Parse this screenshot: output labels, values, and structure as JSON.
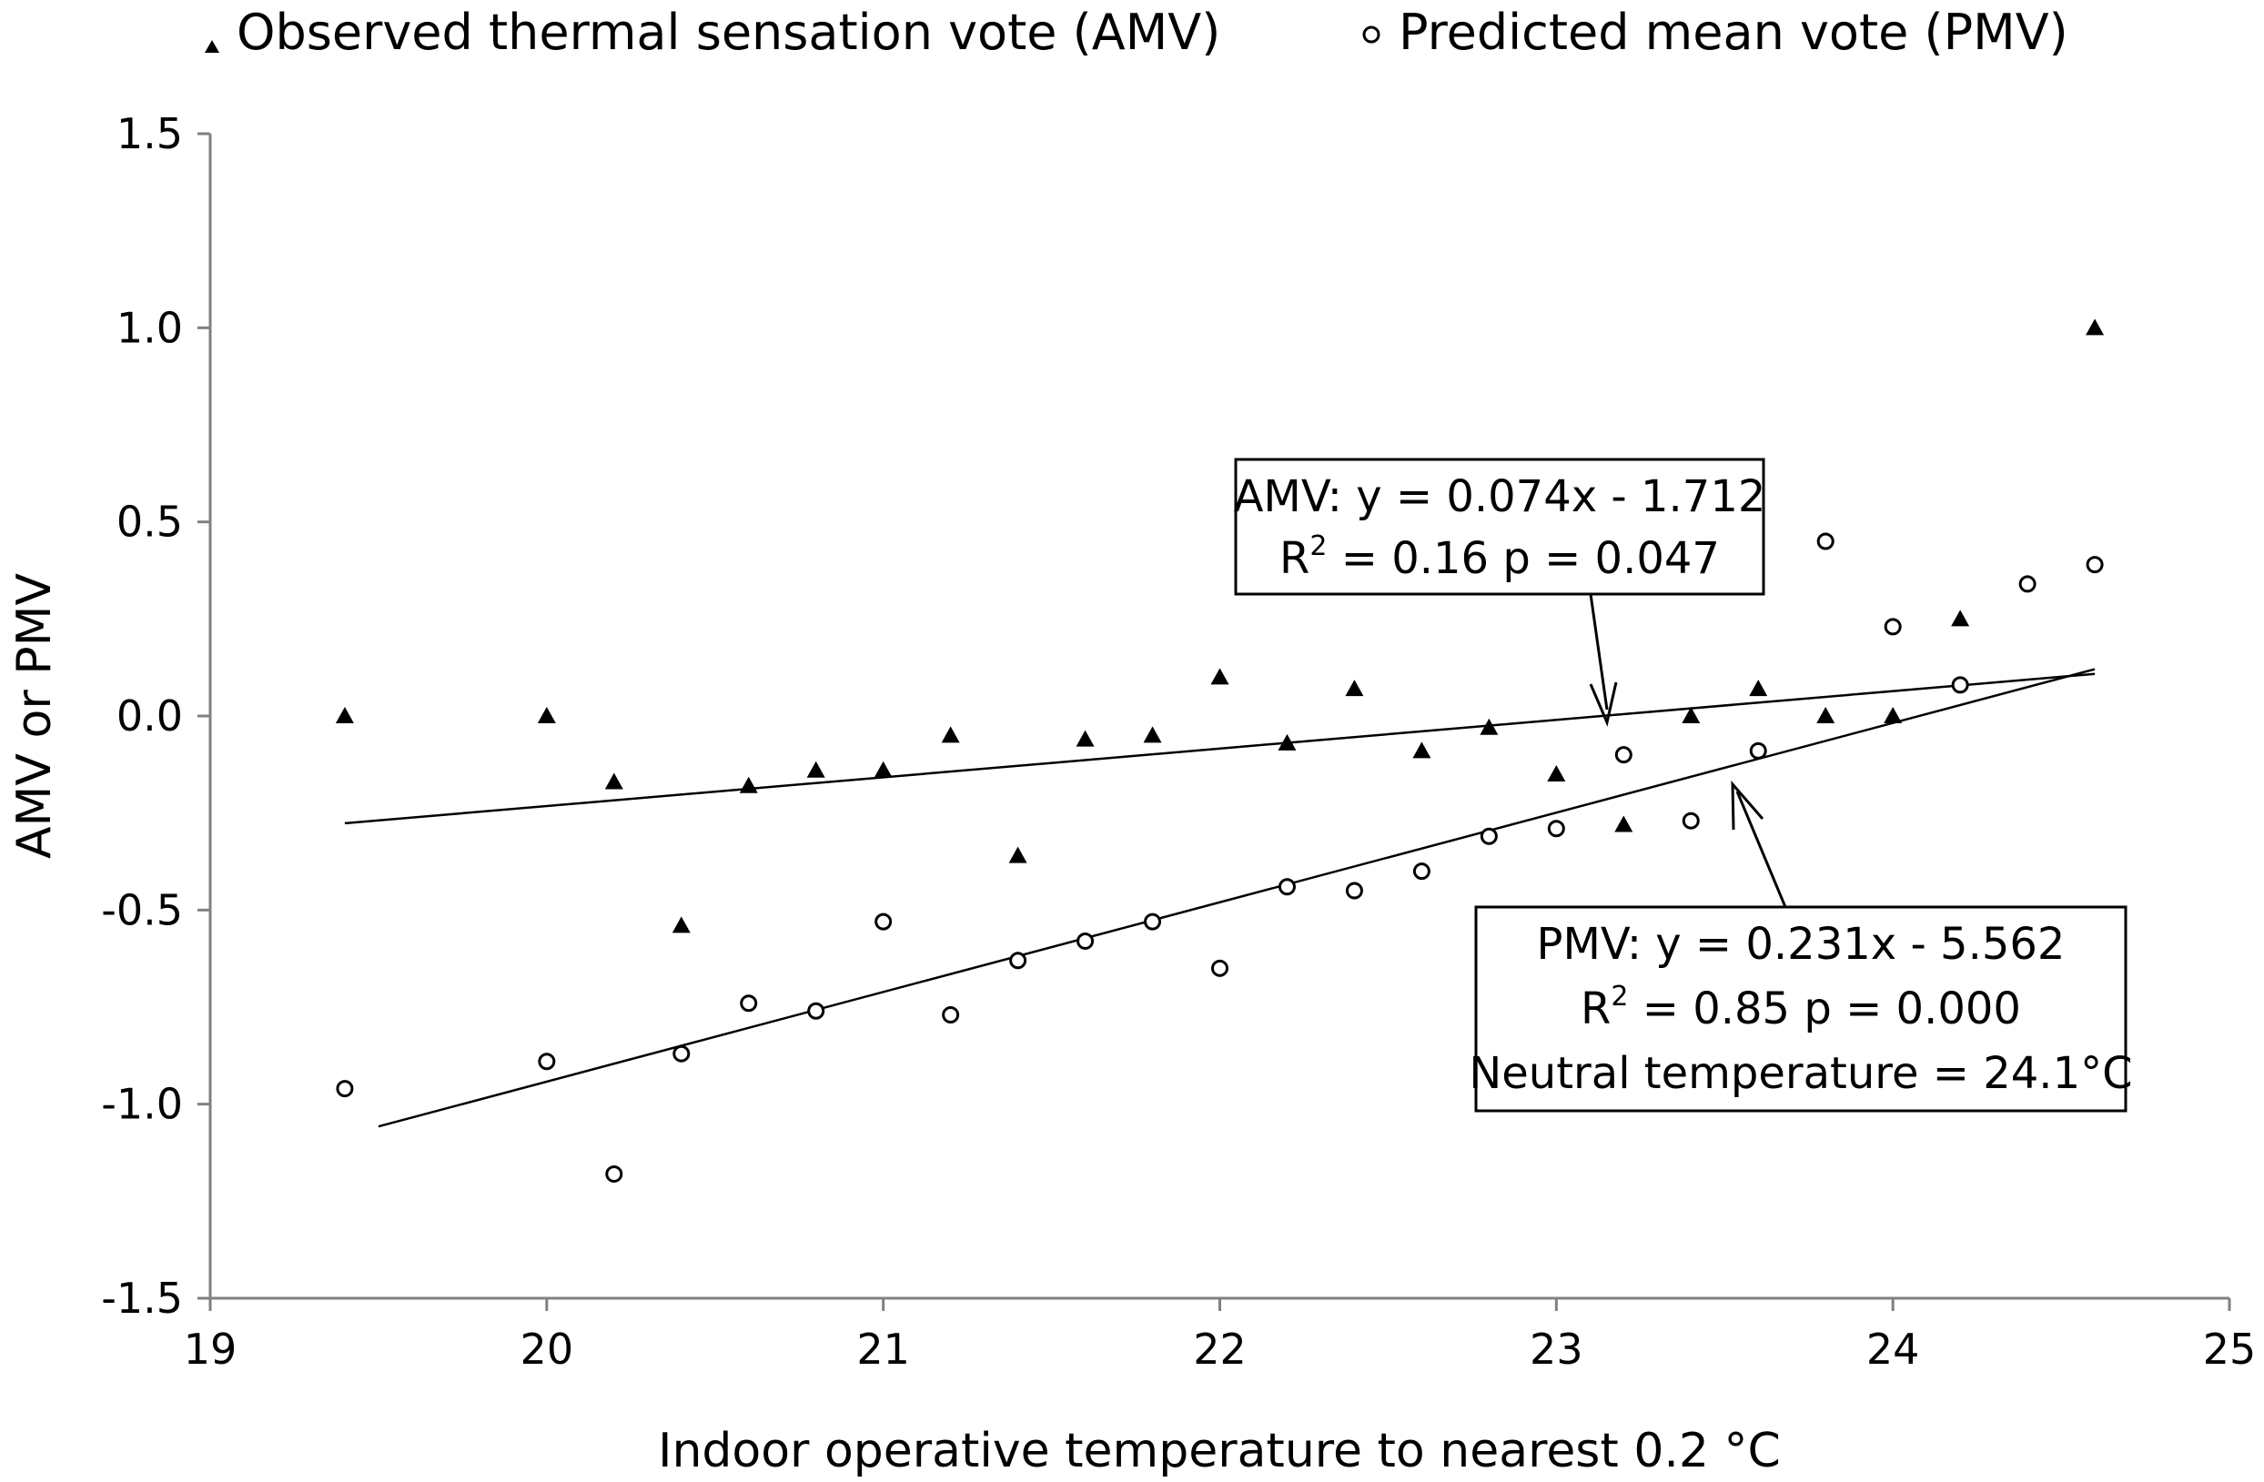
{
  "chart_data": {
    "type": "scatter",
    "title": "",
    "xlabel": "Indoor operative temperature to nearest 0.2 °C",
    "ylabel": "AMV or PMV",
    "xlim": [
      19,
      25
    ],
    "ylim": [
      -1.5,
      1.5
    ],
    "x_ticks": [
      19,
      20,
      21,
      22,
      23,
      24,
      25
    ],
    "y_ticks": [
      1.5,
      1.0,
      0.5,
      0.0,
      -0.5,
      -1.0,
      -1.5
    ],
    "x_tick_labels": [
      "19",
      "20",
      "21",
      "22",
      "23",
      "24",
      "25"
    ],
    "y_tick_labels": [
      "1.5",
      "1.0",
      "0.5",
      "0.0",
      "-0.5",
      "-1.0",
      "-1.5"
    ],
    "grid": false,
    "legend_position": "top",
    "series": [
      {
        "name": "Observed thermal sensation vote (AMV)",
        "marker": "filled-triangle",
        "points": [
          [
            19.4,
            0.0
          ],
          [
            20.0,
            0.0
          ],
          [
            20.2,
            -0.17
          ],
          [
            20.4,
            -0.54
          ],
          [
            20.6,
            -0.18
          ],
          [
            20.8,
            -0.14
          ],
          [
            21.0,
            -0.14
          ],
          [
            21.2,
            -0.05
          ],
          [
            21.4,
            -0.36
          ],
          [
            21.6,
            -0.06
          ],
          [
            21.8,
            -0.05
          ],
          [
            22.0,
            0.1
          ],
          [
            22.2,
            -0.07
          ],
          [
            22.4,
            0.07
          ],
          [
            22.6,
            -0.09
          ],
          [
            22.8,
            -0.03
          ],
          [
            23.0,
            -0.15
          ],
          [
            23.2,
            -0.28
          ],
          [
            23.4,
            0.0
          ],
          [
            23.6,
            0.07
          ],
          [
            23.8,
            0.0
          ],
          [
            24.0,
            0.0
          ],
          [
            24.2,
            0.25
          ],
          [
            24.6,
            1.0
          ]
        ]
      },
      {
        "name": "Predicted mean vote (PMV)",
        "marker": "open-circle",
        "points": [
          [
            19.4,
            -0.96
          ],
          [
            20.0,
            -0.89
          ],
          [
            20.2,
            -1.18
          ],
          [
            20.4,
            -0.87
          ],
          [
            20.6,
            -0.74
          ],
          [
            20.8,
            -0.76
          ],
          [
            21.0,
            -0.53
          ],
          [
            21.2,
            -0.77
          ],
          [
            21.4,
            -0.63
          ],
          [
            21.6,
            -0.58
          ],
          [
            21.8,
            -0.53
          ],
          [
            22.0,
            -0.65
          ],
          [
            22.2,
            -0.44
          ],
          [
            22.4,
            -0.45
          ],
          [
            22.6,
            -0.4
          ],
          [
            22.8,
            -0.31
          ],
          [
            23.0,
            -0.29
          ],
          [
            23.2,
            -0.1
          ],
          [
            23.4,
            -0.27
          ],
          [
            23.6,
            -0.09
          ],
          [
            23.8,
            0.45
          ],
          [
            24.0,
            0.23
          ],
          [
            24.2,
            0.08
          ],
          [
            24.4,
            0.34
          ],
          [
            24.6,
            0.39
          ]
        ]
      }
    ],
    "fits": [
      {
        "series": "AMV",
        "slope": 0.074,
        "intercept": -1.712,
        "x_range": [
          19.4,
          24.6
        ]
      },
      {
        "series": "PMV",
        "slope": 0.231,
        "intercept": -5.562,
        "x_range": [
          19.5,
          24.6
        ]
      }
    ],
    "annotations": [
      {
        "name": "amv-fit-box",
        "lines": [
          "AMV: y = 0.074x - 1.712"
        ],
        "r2": {
          "prefix": "R",
          "sup": "2",
          "rest": " = 0.16 p = 0.047"
        },
        "arrow_target": [
          23.13,
          -0.02
        ]
      },
      {
        "name": "pmv-fit-box",
        "lines": [
          "PMV: y = 0.231x - 5.562"
        ],
        "r2": {
          "prefix": "R",
          "sup": "2",
          "rest": " = 0.85 p = 0.000"
        },
        "extra": "Neutral temperature = 24.1°C",
        "arrow_target": [
          23.5,
          -0.18
        ]
      }
    ]
  }
}
